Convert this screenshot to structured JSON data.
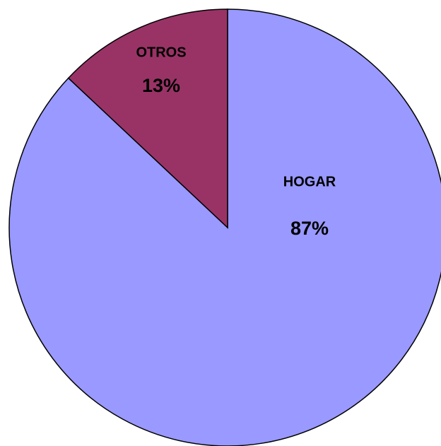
{
  "chart_data": {
    "type": "pie",
    "categories": [
      "HOGAR",
      "OTROS"
    ],
    "values": [
      87,
      13
    ],
    "value_labels": [
      "87%",
      "13%"
    ],
    "colors": [
      "#9999ff",
      "#993366"
    ]
  }
}
